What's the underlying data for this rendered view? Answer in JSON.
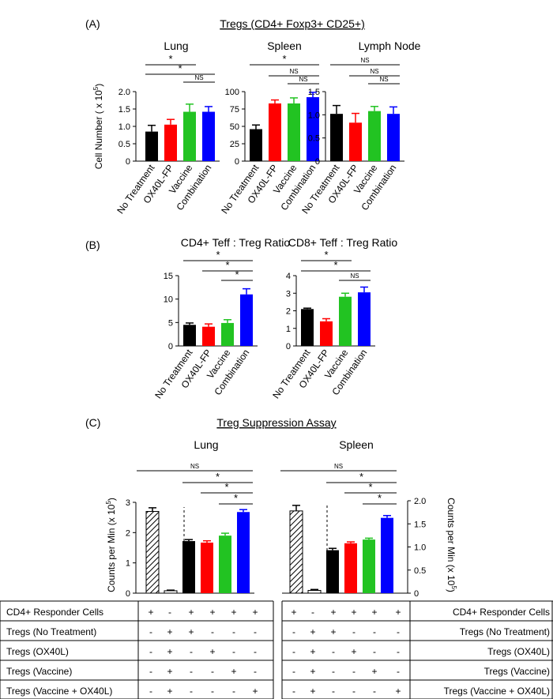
{
  "colors": {
    "black": "#000000",
    "red": "#ff0000",
    "green": "#22c322",
    "blue": "#0000ff"
  },
  "panelA": {
    "label": "(A)",
    "title": "Tregs (CD4+ Foxp3+ CD25+)",
    "ylabel": "Cell Number ( x 10",
    "ylabel_sup": "5",
    "ylabel_end": ")"
  },
  "panelB": {
    "label": "(B)"
  },
  "panelC": {
    "label": "(C)",
    "title": "Treg Suppression Assay",
    "ylabel_left": "Counts per  Min (x 10",
    "ylabel_left_sup": "5",
    "ylabel_left_end": ")",
    "ylabel_right": "Counts per Min (x 10",
    "ylabel_right_sup": "5",
    "ylabel_right_end": ")"
  },
  "chart_data": [
    {
      "id": "a_lung",
      "type": "bar",
      "title": "Lung",
      "categories": [
        "No Treatment",
        "OX40L-FP",
        "Vaccine",
        "Combination"
      ],
      "values": [
        0.85,
        1.05,
        1.42,
        1.42
      ],
      "errors": [
        0.18,
        0.15,
        0.22,
        0.15
      ],
      "ylim": [
        0,
        2.0
      ],
      "yticks": [
        0,
        0.5,
        1.0,
        1.5,
        2.0
      ],
      "ytick_labels": [
        "0",
        "0.5",
        "1.0",
        "1.5",
        "2.0"
      ],
      "sig": [
        {
          "from": 0,
          "to": 2,
          "label": "*"
        },
        {
          "from": 0,
          "to": 3,
          "label": "*"
        },
        {
          "from": 2,
          "to": 3,
          "label": "NS"
        }
      ]
    },
    {
      "id": "a_spleen",
      "type": "bar",
      "title": "Spleen",
      "categories": [
        "No Treatment",
        "OX40L-FP",
        "Vaccine",
        "Combination"
      ],
      "values": [
        46,
        83,
        83,
        92
      ],
      "errors": [
        6,
        5,
        8,
        7
      ],
      "ylim": [
        0,
        100
      ],
      "yticks": [
        0,
        25,
        50,
        75,
        100
      ],
      "ytick_labels": [
        "0",
        "25",
        "50",
        "75",
        "100"
      ],
      "sig": [
        {
          "from": 0,
          "to": 3,
          "label": "*"
        },
        {
          "from": 1,
          "to": 3,
          "label": "NS"
        },
        {
          "from": 2,
          "to": 3,
          "label": "NS"
        }
      ]
    },
    {
      "id": "a_lymph",
      "type": "bar",
      "title": "Lymph Node",
      "categories": [
        "No Treatment",
        "OX40L-FP",
        "Vaccine",
        "Combination"
      ],
      "values": [
        1.02,
        0.83,
        1.08,
        1.02
      ],
      "errors": [
        0.18,
        0.2,
        0.1,
        0.15
      ],
      "ylim": [
        0,
        1.5
      ],
      "yticks": [
        0,
        0.5,
        1.0,
        1.5
      ],
      "ytick_labels": [
        "0",
        "0.5",
        "1.0",
        "1.5"
      ],
      "sig": [
        {
          "from": 0,
          "to": 3,
          "label": "NS"
        },
        {
          "from": 1,
          "to": 3,
          "label": "NS"
        },
        {
          "from": 2,
          "to": 3,
          "label": "NS"
        }
      ]
    },
    {
      "id": "b_cd4",
      "type": "bar",
      "title": "CD4+ Teff : Treg Ratio",
      "categories": [
        "No Treatment",
        "OX40L-FP",
        "Vaccine",
        "Combination"
      ],
      "values": [
        4.5,
        4.1,
        4.9,
        11.0
      ],
      "errors": [
        0.4,
        0.6,
        0.7,
        1.2
      ],
      "ylim": [
        0,
        15
      ],
      "yticks": [
        0,
        5,
        10,
        15
      ],
      "ytick_labels": [
        "0",
        "5",
        "10",
        "15"
      ],
      "sig": [
        {
          "from": 0,
          "to": 3,
          "label": "*"
        },
        {
          "from": 1,
          "to": 3,
          "label": "*"
        },
        {
          "from": 2,
          "to": 3,
          "label": "*"
        }
      ]
    },
    {
      "id": "b_cd8",
      "type": "bar",
      "title": "CD8+  Teff : Treg Ratio",
      "categories": [
        "No Treatment",
        "OX40L-FP",
        "Vaccine",
        "Combination"
      ],
      "values": [
        2.1,
        1.4,
        2.8,
        3.05
      ],
      "errors": [
        0.05,
        0.15,
        0.2,
        0.3
      ],
      "ylim": [
        0,
        4
      ],
      "yticks": [
        0,
        1,
        2,
        3,
        4
      ],
      "ytick_labels": [
        "0",
        "1",
        "2",
        "3",
        "4"
      ],
      "sig": [
        {
          "from": 0,
          "to": 2,
          "label": "*"
        },
        {
          "from": 0,
          "to": 3,
          "label": "*"
        },
        {
          "from": 2,
          "to": 3,
          "label": "NS"
        }
      ]
    },
    {
      "id": "c_lung",
      "type": "bar",
      "title": "Lung",
      "values": [
        2.7,
        0.08,
        1.72,
        1.67,
        1.9,
        2.68
      ],
      "errors": [
        0.12,
        0.02,
        0.05,
        0.06,
        0.08,
        0.08
      ],
      "ylim": [
        0,
        3
      ],
      "yticks": [
        0,
        1,
        2,
        3
      ],
      "ytick_labels": [
        "0",
        "1",
        "2",
        "3"
      ],
      "sig": [
        {
          "from": 0,
          "to": 5,
          "label": "NS"
        },
        {
          "from": 2,
          "to": 5,
          "label": "*"
        },
        {
          "from": 3,
          "to": 5,
          "label": "*"
        },
        {
          "from": 4,
          "to": 5,
          "label": "*"
        }
      ]
    },
    {
      "id": "c_spleen",
      "type": "bar",
      "title": "Spleen",
      "values": [
        1.78,
        0.06,
        0.93,
        1.08,
        1.16,
        1.63
      ],
      "errors": [
        0.12,
        0.02,
        0.04,
        0.03,
        0.03,
        0.05
      ],
      "ylim": [
        0,
        2.0
      ],
      "yticks": [
        0,
        0.5,
        1.0,
        1.5,
        2.0
      ],
      "ytick_labels": [
        "0",
        "0.5",
        "1.0",
        "1.5",
        "2.0"
      ],
      "sig": [
        {
          "from": 0,
          "to": 5,
          "label": "NS"
        },
        {
          "from": 2,
          "to": 5,
          "label": "*"
        },
        {
          "from": 3,
          "to": 5,
          "label": "*"
        },
        {
          "from": 4,
          "to": 5,
          "label": "*"
        }
      ]
    }
  ],
  "table": {
    "rows": [
      {
        "label": "CD4+ Responder Cells",
        "cells": [
          "+",
          "-",
          "+",
          "+",
          "+",
          "+"
        ]
      },
      {
        "label": "Tregs (No Treatment)",
        "cells": [
          "-",
          "+",
          "+",
          "-",
          "-",
          "-"
        ]
      },
      {
        "label": "Tregs (OX40L)",
        "cells": [
          "-",
          "+",
          "-",
          "+",
          "-",
          "-"
        ]
      },
      {
        "label": "Tregs (Vaccine)",
        "cells": [
          "-",
          "+",
          "-",
          "-",
          "+",
          "-"
        ]
      },
      {
        "label": "Tregs (Vaccine + OX40L)",
        "cells": [
          "-",
          "+",
          "-",
          "-",
          "-",
          "+"
        ]
      }
    ]
  }
}
